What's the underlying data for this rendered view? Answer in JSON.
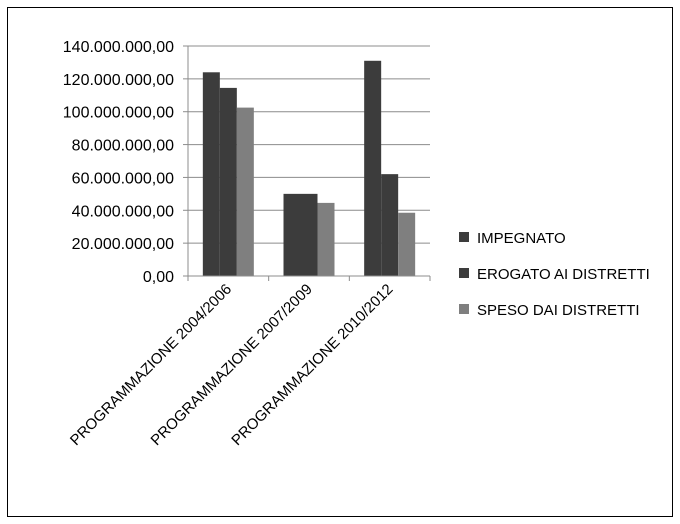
{
  "chart_data": {
    "type": "bar",
    "title": "",
    "xlabel": "",
    "ylabel": "",
    "categories": [
      "PROGRAMMAZIONE 2004/2006",
      "PROGRAMMAZIONE 2007/2009",
      "PROGRAMMAZIONE 2010/2012"
    ],
    "series": [
      {
        "name": "IMPEGNATO",
        "values": [
          124000000,
          50000000,
          131000000
        ],
        "color": "#3c3c3c"
      },
      {
        "name": "EROGATO AI DISTRETTI",
        "values": [
          114500000,
          50000000,
          62000000
        ],
        "color": "#3c3c3c"
      },
      {
        "name": "SPESO DAI DISTRETTI",
        "values": [
          102500000,
          44500000,
          38500000
        ],
        "color": "#7f7f7f"
      }
    ],
    "ylim": [
      0,
      140000000
    ],
    "yticks": [
      {
        "value": 0,
        "label": "0,00"
      },
      {
        "value": 20000000,
        "label": "20.000.000,00"
      },
      {
        "value": 40000000,
        "label": "40.000.000,00"
      },
      {
        "value": 60000000,
        "label": "60.000.000,00"
      },
      {
        "value": 80000000,
        "label": "80.000.000,00"
      },
      {
        "value": 100000000,
        "label": "100.000.000,00"
      },
      {
        "value": 120000000,
        "label": "120.000.000,00"
      },
      {
        "value": 140000000,
        "label": "140.000.000,00"
      }
    ],
    "grid": true,
    "legend_position": "right"
  }
}
